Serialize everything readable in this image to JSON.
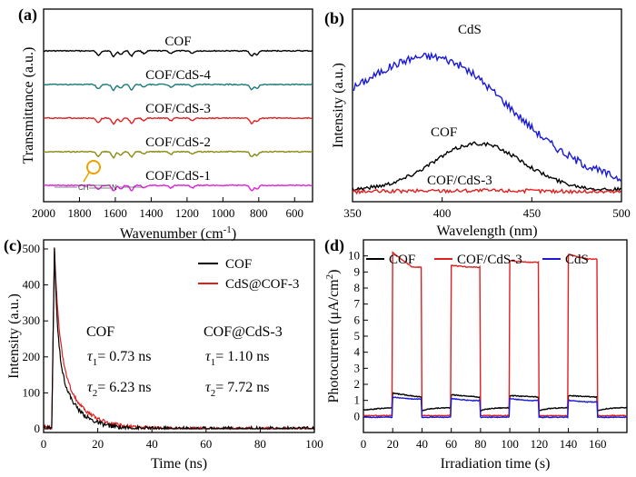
{
  "chart_data": [
    {
      "panel": "(a)",
      "type": "line",
      "xlabel": "Wavenumber (cm",
      "xlabel_sup": "-1",
      "xlabel_end": ")",
      "ylabel": "Transmittance (a.u.)",
      "x_reversed": true,
      "xlim": [
        500,
        2000
      ],
      "xticks": [
        2000,
        1800,
        1600,
        1400,
        1200,
        1000,
        800,
        600
      ],
      "series": [
        {
          "name": "COF",
          "color": "#000000",
          "offset": 5.0
        },
        {
          "name": "COF/CdS-4",
          "color": "#1a7a7a",
          "offset": 4.0
        },
        {
          "name": "COF/CdS-3",
          "color": "#e02020",
          "offset": 3.0
        },
        {
          "name": "COF/CdS-2",
          "color": "#8a8a10",
          "offset": 2.0
        },
        {
          "name": "COF/CdS-1",
          "color": "#e020e0",
          "offset": 1.0
        }
      ],
      "dips": [
        {
          "x": 1695,
          "depth": 0.35
        },
        {
          "x": 1610,
          "depth": 0.45
        },
        {
          "x": 1570,
          "depth": 0.3
        },
        {
          "x": 1510,
          "depth": 0.4
        },
        {
          "x": 1440,
          "depth": 0.2
        },
        {
          "x": 1290,
          "depth": 0.2
        },
        {
          "x": 1170,
          "depth": 0.2
        },
        {
          "x": 840,
          "depth": 0.4
        },
        {
          "x": 810,
          "depth": 0.3
        }
      ],
      "annotation": {
        "left": "CH",
        "right": "N",
        "highlight_x": 1695
      },
      "annotation_color": "#f0a000"
    },
    {
      "panel": "(b)",
      "type": "line",
      "xlabel": "Wavelength (nm)",
      "ylabel": "Intensity (a.u.)",
      "xlim": [
        350,
        500
      ],
      "xticks": [
        350,
        400,
        450,
        500
      ],
      "series": [
        {
          "name": "CdS",
          "color": "#1a1ad6",
          "peak_x": 398,
          "peak_y": 1.0,
          "base": 0.5,
          "width": 55
        },
        {
          "name": "COF",
          "color": "#000000",
          "peak_x": 420,
          "peak_y": 0.33,
          "base": 0.03,
          "width": 35
        },
        {
          "name": "COF/CdS-3",
          "color": "#e02020",
          "peak_x": 420,
          "peak_y": 0.025,
          "base": 0.015,
          "width": 60
        }
      ]
    },
    {
      "panel": "(c)",
      "type": "line",
      "xlabel": "Time (ns)",
      "ylabel": "Intensity (a.u.)",
      "xlim": [
        0,
        100
      ],
      "ylim": [
        0,
        500
      ],
      "xticks": [
        0,
        20,
        40,
        60,
        80,
        100
      ],
      "yticks": [
        0,
        100,
        200,
        300,
        400,
        500
      ],
      "legend_position": "top-right",
      "series": [
        {
          "name": "COF",
          "color": "#000000",
          "peak_t": 4,
          "peak": 500,
          "tau1": 0.73,
          "tau2": 6.23,
          "noise": 12
        },
        {
          "name": "CdS@COF-3",
          "color": "#e02020",
          "peak_t": 4,
          "peak": 500,
          "tau1": 1.1,
          "tau2": 7.72,
          "noise": 10
        }
      ],
      "annotations": {
        "left_title": "COF",
        "left_tau1_sym": "τ",
        "left_tau1_sub": "1",
        "left_tau1_val": "= 0.73 ns",
        "left_tau2_sym": "τ",
        "left_tau2_sub": "2",
        "left_tau2_val": "= 6.23 ns",
        "right_title": "COF@CdS-3",
        "right_tau1_sym": "τ",
        "right_tau1_sub": "1",
        "right_tau1_val": "= 1.10 ns",
        "right_tau2_sym": "τ",
        "right_tau2_sub": "2",
        "right_tau2_val": "= 7.72 ns"
      }
    },
    {
      "panel": "(d)",
      "type": "line",
      "xlabel": "Irradiation time (s)",
      "ylabel": "Photocurrent (μA/cm",
      "ylabel_sup": "2",
      "ylabel_end": ")",
      "xlim": [
        0,
        180
      ],
      "ylim": [
        -1,
        11
      ],
      "xticks": [
        0,
        20,
        40,
        60,
        80,
        100,
        120,
        140,
        160
      ],
      "yticks": [
        0,
        1,
        2,
        3,
        4,
        5,
        6,
        7,
        8,
        9,
        10
      ],
      "legend_position": "top",
      "on_intervals": [
        [
          20,
          40
        ],
        [
          60,
          80
        ],
        [
          100,
          120
        ],
        [
          140,
          160
        ]
      ],
      "series": [
        {
          "name": "COF",
          "color": "#000000",
          "on": [
            1.45,
            1.35,
            1.3,
            1.3
          ],
          "off": 0.55,
          "spike": 1.8
        },
        {
          "name": "COF/CdS-3",
          "color": "#e02020",
          "on": [
            10.2,
            9.4,
            9.7,
            10.1
          ],
          "on_end": [
            9.3,
            9.3,
            9.6,
            9.8
          ],
          "off": 0.05,
          "spike": 10.2
        },
        {
          "name": "CdS",
          "color": "#1a1ad6",
          "on": [
            1.2,
            1.1,
            1.1,
            1.0
          ],
          "off": -0.05,
          "spike": 1.2
        }
      ]
    }
  ]
}
